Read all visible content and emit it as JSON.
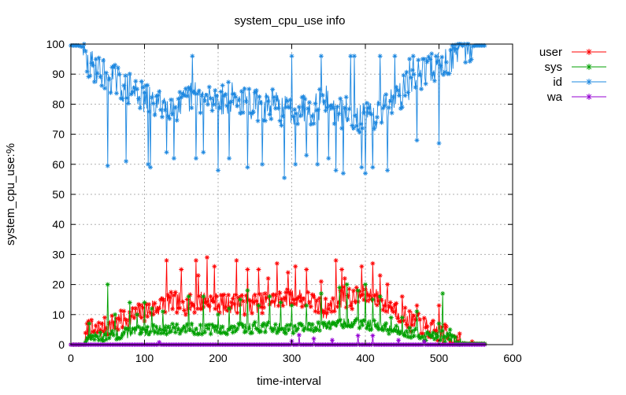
{
  "chart_data": {
    "type": "line",
    "title": "system_cpu_use info",
    "xlabel": "time-interval",
    "ylabel": "system_cpu_use:%",
    "xlim": [
      0,
      600
    ],
    "ylim": [
      0,
      100
    ],
    "xticks": [
      0,
      100,
      200,
      300,
      400,
      500,
      600
    ],
    "yticks": [
      0,
      10,
      20,
      30,
      40,
      50,
      60,
      70,
      80,
      90,
      100
    ],
    "grid": true,
    "legend_position": "outside-top-right",
    "x_count": 564,
    "series": [
      {
        "name": "user",
        "color": "#ff0000",
        "marker": "asterisk",
        "keypoints": [
          [
            0,
            0
          ],
          [
            18,
            0
          ],
          [
            20,
            1
          ],
          [
            22,
            4
          ],
          [
            25,
            6
          ],
          [
            30,
            4
          ],
          [
            40,
            5
          ],
          [
            50,
            6
          ],
          [
            60,
            7
          ],
          [
            70,
            8
          ],
          [
            80,
            9
          ],
          [
            90,
            10
          ],
          [
            100,
            11
          ],
          [
            110,
            12
          ],
          [
            120,
            13
          ],
          [
            130,
            14
          ],
          [
            140,
            14
          ],
          [
            150,
            14
          ],
          [
            160,
            13
          ],
          [
            170,
            14
          ],
          [
            180,
            15
          ],
          [
            190,
            14
          ],
          [
            200,
            14
          ],
          [
            210,
            13
          ],
          [
            220,
            14
          ],
          [
            230,
            14
          ],
          [
            240,
            13
          ],
          [
            250,
            14
          ],
          [
            260,
            14
          ],
          [
            270,
            15
          ],
          [
            280,
            15
          ],
          [
            290,
            16
          ],
          [
            300,
            16
          ],
          [
            310,
            16
          ],
          [
            320,
            15
          ],
          [
            330,
            14
          ],
          [
            340,
            12
          ],
          [
            350,
            12
          ],
          [
            360,
            15
          ],
          [
            370,
            16
          ],
          [
            380,
            15
          ],
          [
            390,
            16
          ],
          [
            400,
            17
          ],
          [
            410,
            16
          ],
          [
            420,
            15
          ],
          [
            430,
            13
          ],
          [
            440,
            12
          ],
          [
            450,
            10
          ],
          [
            460,
            8
          ],
          [
            470,
            7
          ],
          [
            480,
            6
          ],
          [
            490,
            5
          ],
          [
            500,
            4
          ],
          [
            510,
            3
          ],
          [
            520,
            2
          ],
          [
            530,
            0.5
          ],
          [
            540,
            0.3
          ],
          [
            564,
            0.3
          ]
        ],
        "spikes": [
          [
            130,
            28
          ],
          [
            150,
            25
          ],
          [
            170,
            28
          ],
          [
            173,
            23
          ],
          [
            185,
            29
          ],
          [
            195,
            26
          ],
          [
            225,
            28
          ],
          [
            240,
            25
          ],
          [
            255,
            25
          ],
          [
            268,
            22
          ],
          [
            280,
            27
          ],
          [
            295,
            24
          ],
          [
            305,
            26
          ],
          [
            320,
            25
          ],
          [
            340,
            21
          ],
          [
            360,
            28
          ],
          [
            368,
            25
          ],
          [
            372,
            22
          ],
          [
            395,
            26
          ],
          [
            410,
            27
          ],
          [
            420,
            23
          ],
          [
            430,
            20
          ],
          [
            450,
            16
          ],
          [
            470,
            13
          ],
          [
            500,
            13
          ],
          [
            510,
            6
          ],
          [
            545,
            1
          ]
        ]
      },
      {
        "name": "sys",
        "color": "#00a000",
        "marker": "asterisk",
        "keypoints": [
          [
            0,
            0
          ],
          [
            18,
            0
          ],
          [
            20,
            1
          ],
          [
            22,
            3
          ],
          [
            25,
            3
          ],
          [
            30,
            2.5
          ],
          [
            50,
            3
          ],
          [
            80,
            4
          ],
          [
            100,
            4.5
          ],
          [
            120,
            5
          ],
          [
            150,
            5.5
          ],
          [
            180,
            5
          ],
          [
            200,
            5
          ],
          [
            220,
            5
          ],
          [
            240,
            5.5
          ],
          [
            260,
            6
          ],
          [
            280,
            5.5
          ],
          [
            300,
            5.5
          ],
          [
            320,
            6
          ],
          [
            340,
            6
          ],
          [
            360,
            7
          ],
          [
            380,
            7
          ],
          [
            400,
            7
          ],
          [
            420,
            6
          ],
          [
            440,
            5
          ],
          [
            460,
            4
          ],
          [
            480,
            3
          ],
          [
            500,
            3
          ],
          [
            510,
            2.5
          ],
          [
            520,
            1.5
          ],
          [
            530,
            0.5
          ],
          [
            540,
            0.3
          ],
          [
            564,
            0.3
          ]
        ],
        "spikes": [
          [
            25,
            7
          ],
          [
            50,
            20
          ],
          [
            60,
            10
          ],
          [
            80,
            14
          ],
          [
            90,
            10
          ],
          [
            100,
            14
          ],
          [
            110,
            12
          ],
          [
            125,
            11
          ],
          [
            160,
            16
          ],
          [
            180,
            16
          ],
          [
            200,
            10
          ],
          [
            215,
            12
          ],
          [
            230,
            15
          ],
          [
            240,
            18
          ],
          [
            255,
            13
          ],
          [
            270,
            16
          ],
          [
            285,
            14
          ],
          [
            300,
            13
          ],
          [
            320,
            13
          ],
          [
            340,
            17
          ],
          [
            365,
            19
          ],
          [
            375,
            20
          ],
          [
            390,
            18
          ],
          [
            400,
            20
          ],
          [
            410,
            15
          ],
          [
            420,
            16
          ],
          [
            435,
            9
          ],
          [
            450,
            9
          ],
          [
            470,
            11
          ],
          [
            500,
            7
          ],
          [
            505,
            17
          ],
          [
            515,
            5
          ]
        ]
      },
      {
        "name": "id",
        "color": "#1e88e0",
        "marker": "asterisk",
        "keypoints": [
          [
            0,
            99.5
          ],
          [
            10,
            99.5
          ],
          [
            17,
            99
          ],
          [
            20,
            95
          ],
          [
            22,
            93
          ],
          [
            25,
            92
          ],
          [
            30,
            93
          ],
          [
            40,
            91
          ],
          [
            50,
            90
          ],
          [
            60,
            88
          ],
          [
            70,
            86
          ],
          [
            80,
            85
          ],
          [
            90,
            84
          ],
          [
            100,
            82
          ],
          [
            110,
            80
          ],
          [
            120,
            80
          ],
          [
            130,
            81
          ],
          [
            140,
            80
          ],
          [
            150,
            79
          ],
          [
            160,
            82
          ],
          [
            170,
            83
          ],
          [
            180,
            82
          ],
          [
            190,
            81
          ],
          [
            200,
            82
          ],
          [
            210,
            82
          ],
          [
            220,
            82
          ],
          [
            230,
            81
          ],
          [
            240,
            80
          ],
          [
            250,
            80
          ],
          [
            260,
            79
          ],
          [
            270,
            80
          ],
          [
            280,
            79
          ],
          [
            290,
            78
          ],
          [
            300,
            78
          ],
          [
            310,
            79
          ],
          [
            320,
            78
          ],
          [
            330,
            79
          ],
          [
            340,
            80
          ],
          [
            350,
            82
          ],
          [
            360,
            76
          ],
          [
            370,
            77
          ],
          [
            380,
            77
          ],
          [
            390,
            76
          ],
          [
            400,
            75
          ],
          [
            410,
            76
          ],
          [
            420,
            77
          ],
          [
            430,
            80
          ],
          [
            440,
            82
          ],
          [
            450,
            84
          ],
          [
            460,
            87
          ],
          [
            470,
            89
          ],
          [
            480,
            91
          ],
          [
            490,
            92
          ],
          [
            500,
            93
          ],
          [
            510,
            94
          ],
          [
            520,
            96
          ],
          [
            530,
            98
          ],
          [
            540,
            99
          ],
          [
            550,
            99.5
          ],
          [
            564,
            99.5
          ]
        ],
        "spikes": [
          [
            50,
            59.5
          ],
          [
            75,
            61
          ],
          [
            105,
            60
          ],
          [
            108,
            59
          ],
          [
            130,
            64
          ],
          [
            140,
            62
          ],
          [
            165,
            53.5
          ],
          [
            170,
            62
          ],
          [
            180,
            64
          ],
          [
            200,
            58
          ],
          [
            215,
            62
          ],
          [
            240,
            59
          ],
          [
            260,
            60
          ],
          [
            290,
            55.5
          ],
          [
            305,
            60
          ],
          [
            320,
            63
          ],
          [
            335,
            60
          ],
          [
            350,
            62
          ],
          [
            360,
            58
          ],
          [
            370,
            57
          ],
          [
            385,
            60
          ],
          [
            395,
            59
          ],
          [
            400,
            57
          ],
          [
            410,
            59
          ],
          [
            420,
            60
          ],
          [
            430,
            58
          ],
          [
            470,
            68
          ],
          [
            500,
            67
          ],
          [
            465,
            96
          ],
          [
            300,
            96
          ],
          [
            165,
            96
          ],
          [
            340,
            96
          ],
          [
            380,
            96
          ],
          [
            385,
            96
          ],
          [
            420,
            96
          ],
          [
            440,
            96
          ],
          [
            460,
            95
          ],
          [
            478,
            95
          ],
          [
            480,
            95
          ]
        ]
      },
      {
        "name": "wa",
        "color": "#9400d3",
        "marker": "asterisk",
        "keypoints": [
          [
            0,
            0
          ],
          [
            564,
            0
          ]
        ],
        "spikes": [
          [
            120,
            0.8
          ],
          [
            300,
            1.2
          ],
          [
            310,
            3.2
          ],
          [
            330,
            2
          ],
          [
            355,
            1.5
          ],
          [
            390,
            3
          ],
          [
            410,
            3
          ],
          [
            445,
            1.5
          ],
          [
            480,
            1
          ]
        ]
      }
    ]
  }
}
